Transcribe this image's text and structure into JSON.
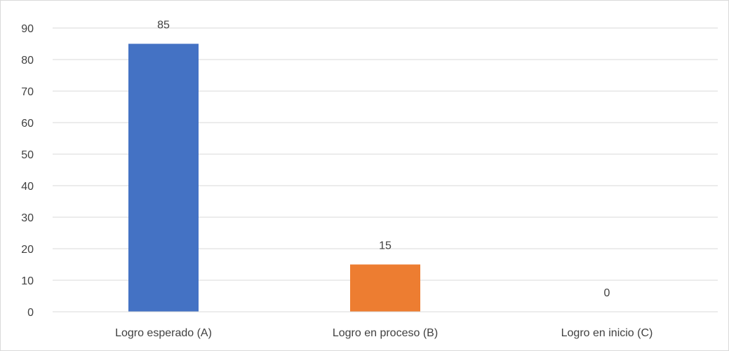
{
  "chart_data": {
    "type": "bar",
    "categories": [
      "Logro esperado (A)",
      "Logro en proceso (B)",
      "Logro en inicio (C)"
    ],
    "values": [
      85,
      15,
      0
    ],
    "data_labels": [
      "85",
      "15",
      "0"
    ],
    "colors": [
      "#4472C4",
      "#ED7D31",
      "#A5A5A5"
    ],
    "title": "",
    "xlabel": "",
    "ylabel": "",
    "ylim": [
      0,
      90
    ],
    "yticks": [
      0,
      10,
      20,
      30,
      40,
      50,
      60,
      70,
      80,
      90
    ],
    "grid": true,
    "legend": "none"
  }
}
